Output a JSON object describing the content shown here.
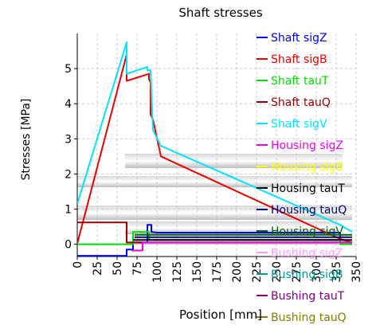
{
  "chart_data": {
    "type": "line",
    "title": "Shaft stresses",
    "xlabel": "Position [mm]",
    "ylabel": "Stresses [MPa]",
    "xlim": [
      0,
      350
    ],
    "ylim": [
      -0.35,
      6.0
    ],
    "x_ticks": [
      0,
      25,
      50,
      75,
      100,
      125,
      150,
      175,
      200,
      225,
      250,
      275,
      300,
      325,
      350
    ],
    "x_tick_labels": [
      "0",
      "25",
      "50",
      "75",
      "100",
      "125",
      "150",
      "175",
      "200",
      "225",
      "250",
      "275",
      "300",
      "325",
      "350"
    ],
    "y_ticks": [
      0,
      1,
      2,
      3,
      4,
      5
    ],
    "y_tick_labels": [
      "0",
      "1",
      "2",
      "3",
      "4",
      "5"
    ],
    "grid": true,
    "legend_position": "right, overlapping plot",
    "series": [
      {
        "name": "Shaft sigZ",
        "color": "#0000ff",
        "points": [
          [
            0,
            -0.33
          ],
          [
            62,
            -0.33
          ],
          [
            62,
            -0.15
          ],
          [
            70,
            -0.15
          ],
          [
            70,
            0.05
          ],
          [
            88,
            0.05
          ],
          [
            88,
            0.55
          ],
          [
            93,
            0.55
          ],
          [
            93,
            0.35
          ],
          [
            100,
            0.33
          ],
          [
            330,
            0.33
          ],
          [
            330,
            0.05
          ],
          [
            345,
            0.05
          ]
        ]
      },
      {
        "name": "Shaft sigB",
        "color": "#ee0000",
        "points": [
          [
            0,
            0.02
          ],
          [
            62,
            5.4
          ],
          [
            62,
            4.65
          ],
          [
            90,
            4.85
          ],
          [
            90,
            4.7
          ],
          [
            92,
            4.6
          ],
          [
            92,
            3.7
          ],
          [
            95,
            3.55
          ],
          [
            105,
            2.5
          ],
          [
            330,
            0.15
          ],
          [
            345,
            0.05
          ]
        ]
      },
      {
        "name": "Shaft tauT",
        "color": "#00dd00",
        "points": [
          [
            0,
            0.0
          ],
          [
            70,
            0.0
          ],
          [
            70,
            0.35
          ],
          [
            90,
            0.35
          ],
          [
            90,
            0.12
          ],
          [
            330,
            0.12
          ],
          [
            330,
            0.0
          ],
          [
            345,
            0.0
          ]
        ]
      },
      {
        "name": "Shaft tauQ",
        "color": "#990000",
        "points": [
          [
            0,
            0.62
          ],
          [
            62,
            0.62
          ],
          [
            62,
            0.05
          ],
          [
            330,
            0.05
          ],
          [
            345,
            0.05
          ]
        ]
      },
      {
        "name": "Shaft sigV",
        "color": "#00e5ff",
        "points": [
          [
            0,
            1.15
          ],
          [
            62,
            5.75
          ],
          [
            62,
            4.85
          ],
          [
            88,
            5.05
          ],
          [
            88,
            4.95
          ],
          [
            92,
            4.95
          ],
          [
            95,
            3.25
          ],
          [
            105,
            2.8
          ],
          [
            330,
            0.55
          ],
          [
            345,
            0.35
          ]
        ]
      },
      {
        "name": "Housing sigZ",
        "color": "#ee00ee",
        "points": [
          [
            68,
            -0.18
          ],
          [
            82,
            -0.18
          ],
          [
            82,
            0.05
          ],
          [
            345,
            0.05
          ]
        ]
      },
      {
        "name": "Housing sigB",
        "color": "#ffff00",
        "points": []
      },
      {
        "name": "Housing tauT",
        "color": "#000000",
        "points": [
          [
            70,
            0.12
          ],
          [
            345,
            0.12
          ]
        ]
      },
      {
        "name": "Housing tauQ",
        "color": "#000080",
        "points": [
          [
            72,
            0.2
          ],
          [
            345,
            0.2
          ]
        ]
      },
      {
        "name": "Housing sigV",
        "color": "#006400",
        "points": [
          [
            72,
            0.27
          ],
          [
            345,
            0.27
          ]
        ]
      },
      {
        "name": "Bushing sigZ",
        "color": "#ff99ff",
        "points": []
      },
      {
        "name": "Bushing sigB",
        "color": "#009999",
        "points": []
      },
      {
        "name": "Bushing tauT",
        "color": "#800080",
        "points": []
      },
      {
        "name": "Bushing tauQ",
        "color": "#808000",
        "points": []
      }
    ]
  }
}
